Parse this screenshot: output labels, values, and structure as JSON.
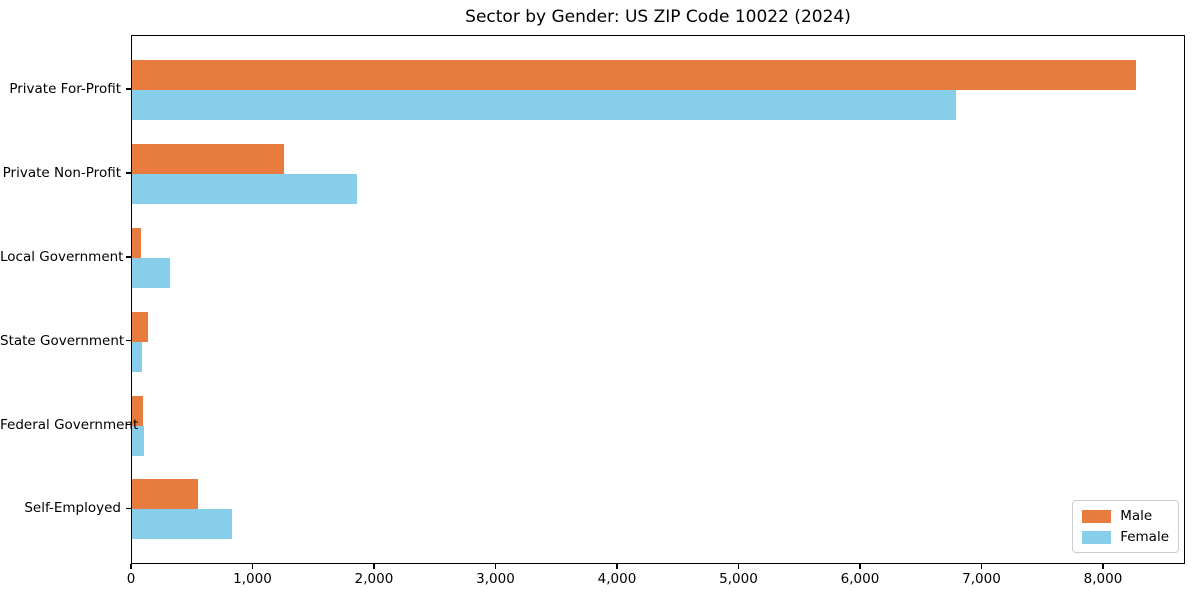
{
  "chart_data": {
    "type": "bar",
    "orientation": "horizontal",
    "title": "Sector by Gender: US ZIP Code 10022 (2024)",
    "categories": [
      "Private For-Profit",
      "Private Non-Profit",
      "Local Government",
      "State Government",
      "Federal Government",
      "Self-Employed"
    ],
    "series": [
      {
        "name": "Male",
        "color": "#e87b3e",
        "values": [
          8260,
          1250,
          70,
          135,
          90,
          540
        ]
      },
      {
        "name": "Female",
        "color": "#87ceeb",
        "values": [
          6780,
          1850,
          310,
          80,
          100,
          820
        ]
      }
    ],
    "xlim": [
      0,
      8675
    ],
    "xticks": {
      "values": [
        0,
        1000,
        2000,
        3000,
        4000,
        5000,
        6000,
        7000,
        8000
      ],
      "labels": [
        "0",
        "1,000",
        "2,000",
        "3,000",
        "4,000",
        "5,000",
        "6,000",
        "7,000",
        "8,000"
      ]
    },
    "ylabel": "",
    "xlabel": "",
    "grid": false,
    "legend_position": "lower right",
    "axis_color": "#000000",
    "background_color": "#ffffff"
  }
}
